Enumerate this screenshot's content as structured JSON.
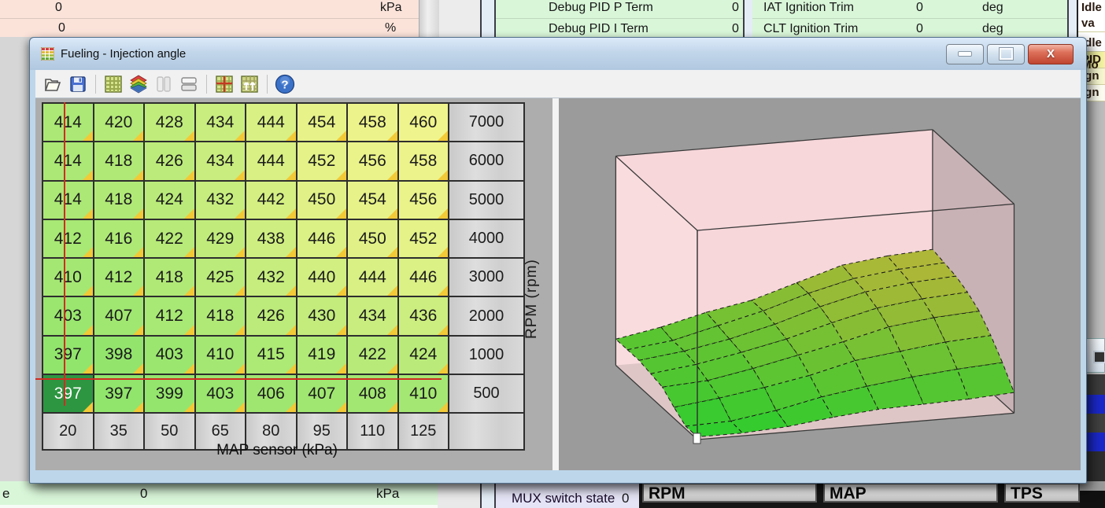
{
  "window": {
    "title": "Fueling - Injection angle",
    "controls": [
      "minimize",
      "restore",
      "close"
    ],
    "toolbar_icons": [
      "open-file",
      "save",
      "table-view",
      "surface-3d-view",
      "split-vertical",
      "split-horizontal",
      "table-crosshair",
      "table-increment",
      "help"
    ]
  },
  "table": {
    "x_axis_label": "MAP sensor (kPa)",
    "y_axis_label": "RPM (rpm)",
    "map_cols": [
      20,
      35,
      50,
      65,
      80,
      95,
      110,
      125
    ],
    "rpm_rows": [
      7000,
      6000,
      5000,
      4000,
      3000,
      2000,
      1000,
      500
    ],
    "values": [
      [
        414,
        420,
        428,
        434,
        444,
        454,
        458,
        460
      ],
      [
        414,
        418,
        426,
        434,
        444,
        452,
        456,
        458
      ],
      [
        414,
        418,
        424,
        432,
        442,
        450,
        454,
        456
      ],
      [
        412,
        416,
        422,
        429,
        438,
        446,
        450,
        452
      ],
      [
        410,
        412,
        418,
        425,
        432,
        440,
        444,
        446
      ],
      [
        403,
        407,
        412,
        418,
        426,
        430,
        434,
        436
      ],
      [
        397,
        398,
        403,
        410,
        415,
        419,
        422,
        424
      ],
      [
        397,
        397,
        399,
        403,
        406,
        407,
        408,
        410
      ]
    ],
    "selected": {
      "rpm": 500,
      "map": 20,
      "value": 397
    }
  },
  "chart_data": {
    "type": "surface",
    "title": "Fueling - Injection angle",
    "xlabel": "MAP sensor (kPa)",
    "ylabel": "RPM (rpm)",
    "x": [
      20,
      35,
      50,
      65,
      80,
      95,
      110,
      125
    ],
    "y": [
      500,
      1000,
      2000,
      3000,
      4000,
      5000,
      6000,
      7000
    ],
    "z": [
      [
        397,
        397,
        399,
        403,
        406,
        407,
        408,
        410
      ],
      [
        397,
        398,
        403,
        410,
        415,
        419,
        422,
        424
      ],
      [
        403,
        407,
        412,
        418,
        426,
        430,
        434,
        436
      ],
      [
        410,
        412,
        418,
        425,
        432,
        440,
        444,
        446
      ],
      [
        412,
        416,
        422,
        429,
        438,
        446,
        450,
        452
      ],
      [
        414,
        418,
        424,
        432,
        442,
        450,
        454,
        456
      ],
      [
        414,
        418,
        426,
        434,
        444,
        452,
        456,
        458
      ],
      [
        414,
        420,
        428,
        434,
        444,
        454,
        458,
        460
      ]
    ],
    "zlim": [
      395,
      465
    ],
    "colors": {
      "low": "#30cc30",
      "high": "#b2b438",
      "walls": "#f7d7da",
      "wall_shadow": "#c9b2b6",
      "floor": "#dfc6c6"
    }
  },
  "background": {
    "top_left_rows": [
      {
        "value": "0",
        "unit": "kPa"
      },
      {
        "value": "0",
        "unit": "%"
      }
    ],
    "debug_rows": [
      {
        "name": "Debug PID P Term",
        "value": "0"
      },
      {
        "name": "Debug PID I Term",
        "value": "0"
      }
    ],
    "trim_rows": [
      {
        "name": "IAT Ignition Trim",
        "value": "0",
        "unit": "deg"
      },
      {
        "name": "CLT Ignition Trim",
        "value": "0",
        "unit": "deg"
      }
    ],
    "idle_items": [
      "Idle va",
      "Idle Mo"
    ],
    "right_edge_items": [
      "PID",
      "Ign",
      "ign"
    ],
    "bottom_left_row": {
      "prefix": "e",
      "value": "0",
      "unit": "kPa"
    },
    "mux_row": {
      "name": "MUX switch state",
      "value": "0"
    },
    "gauges": [
      "RPM",
      "MAP",
      "TPS"
    ]
  }
}
